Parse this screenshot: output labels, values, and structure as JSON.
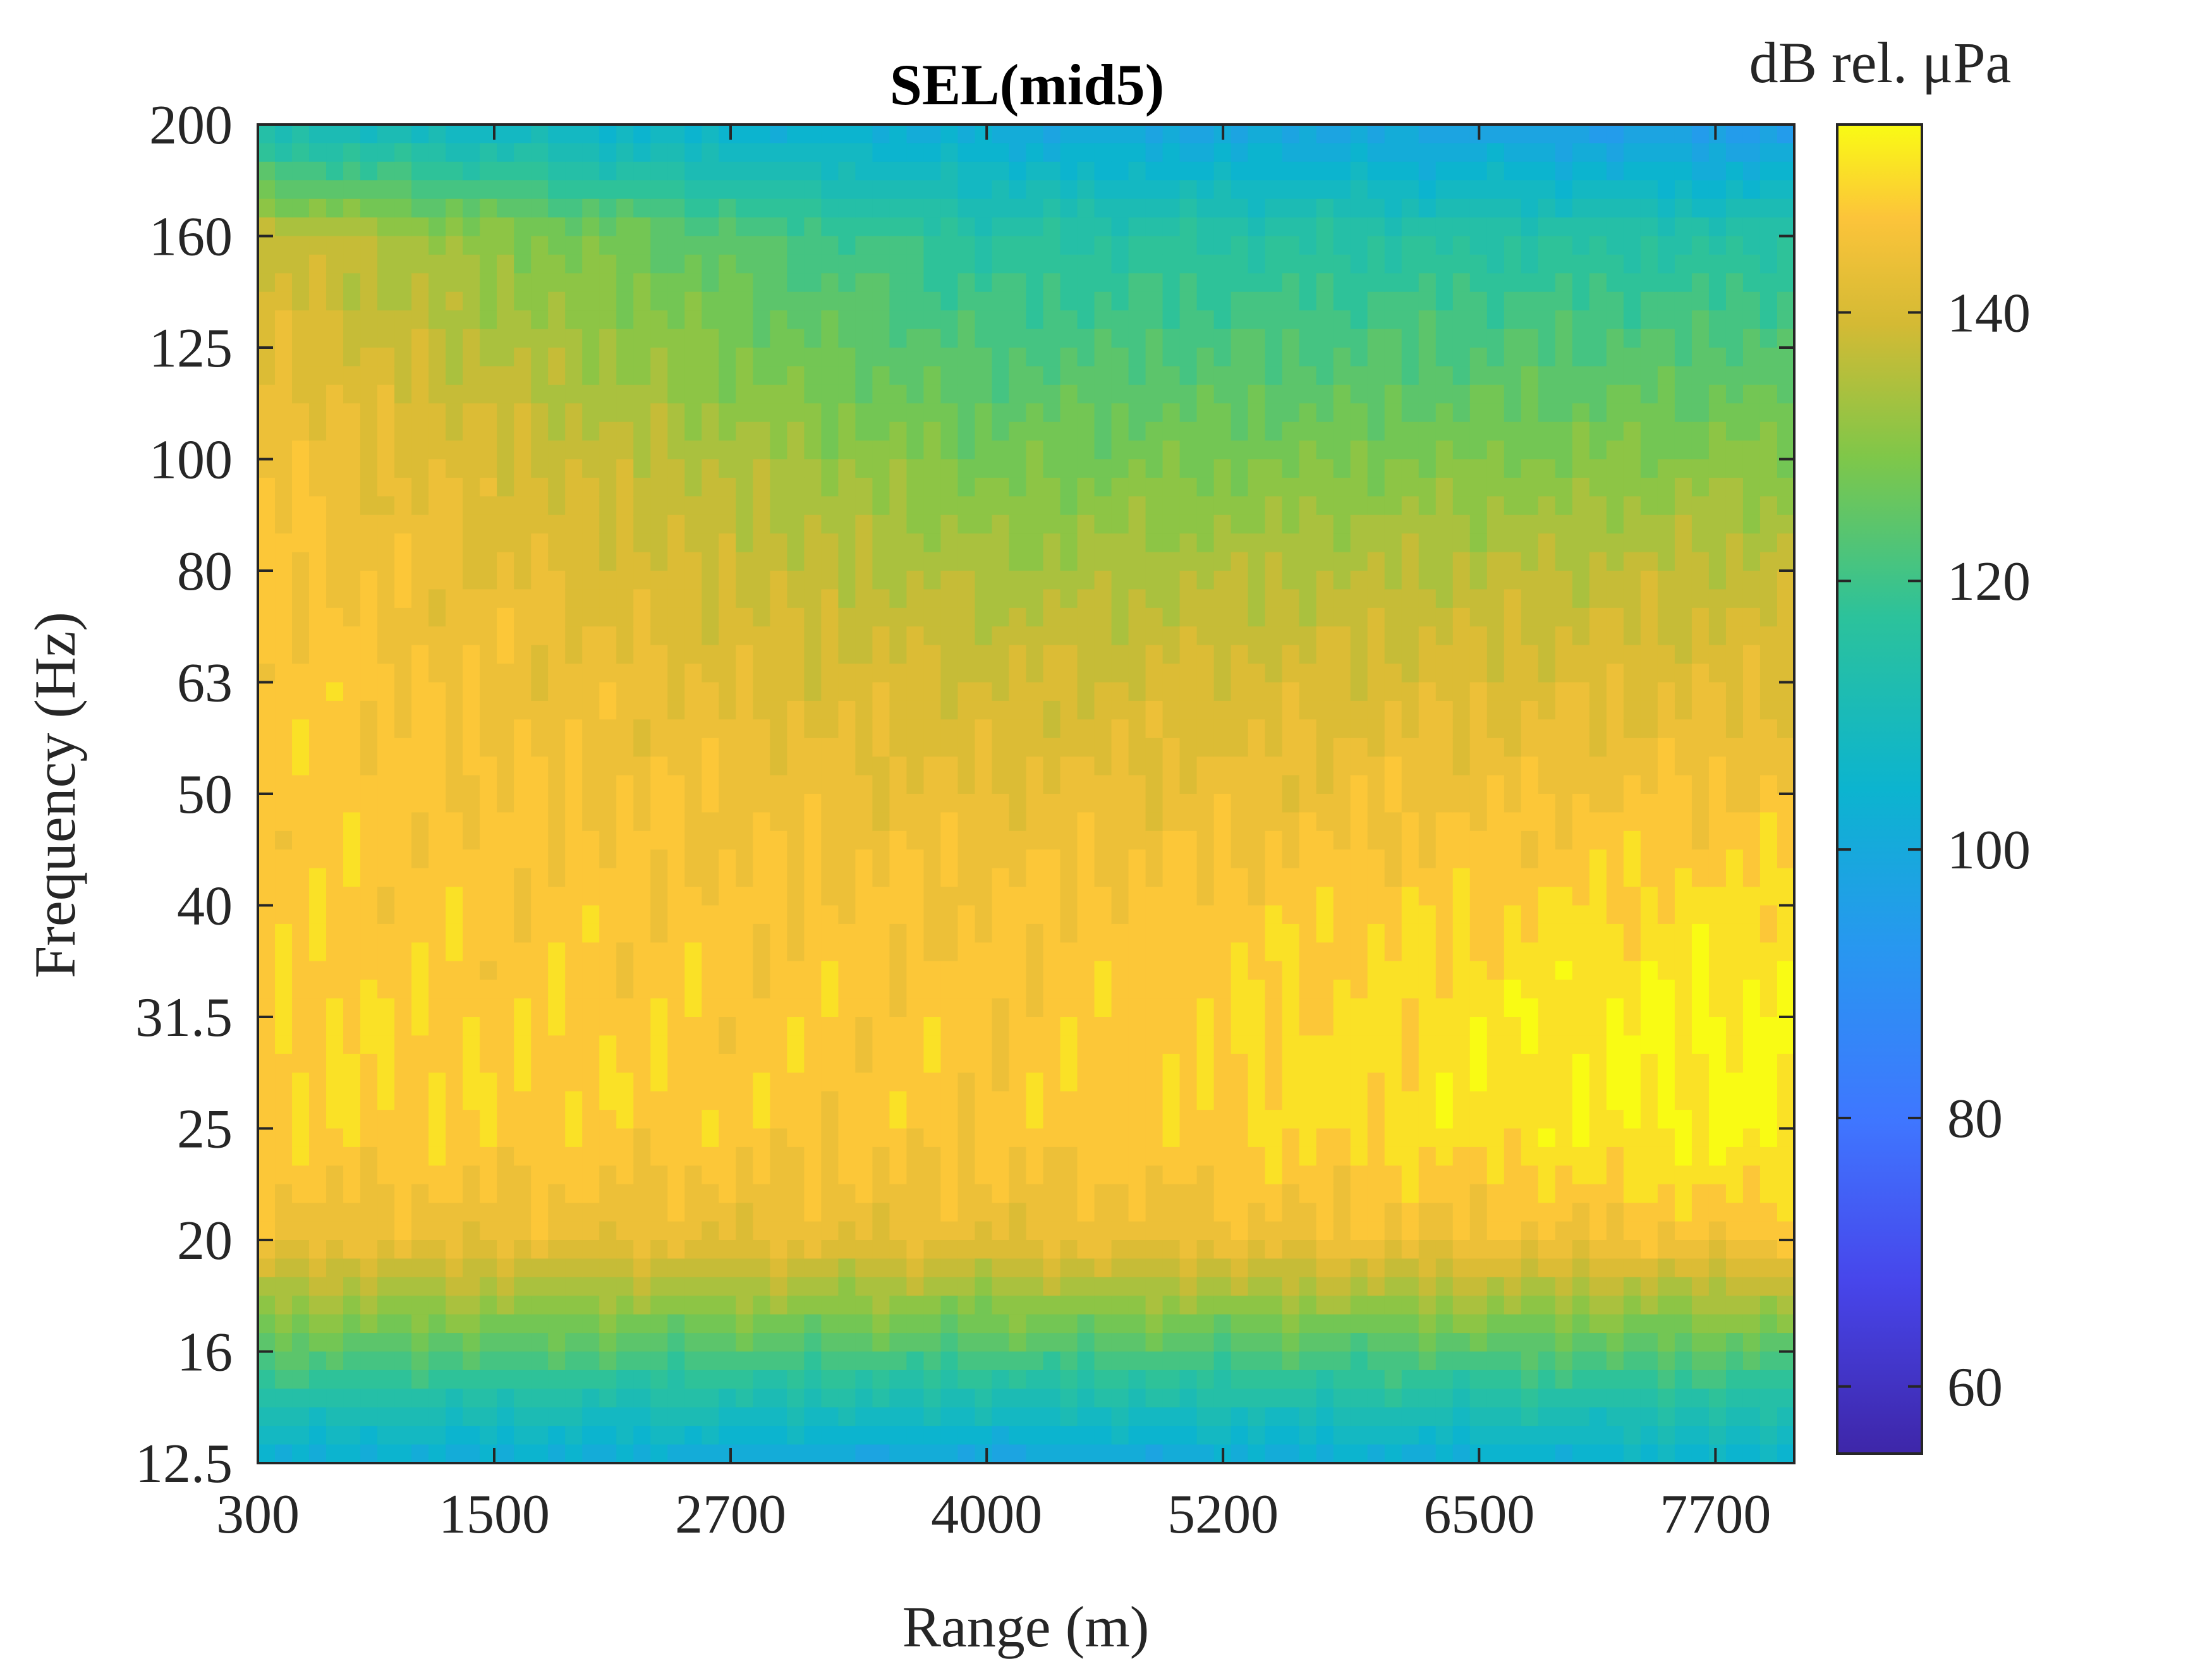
{
  "chart_data": {
    "type": "heatmap",
    "title": "SEL(mid5)",
    "xlabel": "Range (m)",
    "ylabel": "Frequency (Hz)",
    "xlim": [
      300,
      8100
    ],
    "x_ticks": [
      "300",
      "1500",
      "2700",
      "4000",
      "5200",
      "6500",
      "7700"
    ],
    "x_tick_values": [
      300,
      1500,
      2700,
      4000,
      5200,
      6500,
      7700
    ],
    "y_ticks": [
      "12.5",
      "16",
      "20",
      "25",
      "31.5",
      "40",
      "50",
      "63",
      "80",
      "100",
      "125",
      "160",
      "200"
    ],
    "y_scale": "third-octave bands (evenly spaced)",
    "colorbar": {
      "label": "dB rel. μPa",
      "range": [
        55,
        154
      ],
      "ticks": [
        "60",
        "80",
        "100",
        "120",
        "140"
      ],
      "tick_values": [
        60,
        80,
        100,
        120,
        140
      ],
      "colormap": "parula"
    },
    "bands_profile": {
      "freqs": [
        "12.5",
        "16",
        "20",
        "25",
        "31.5",
        "40",
        "50",
        "63",
        "80",
        "100",
        "125",
        "160",
        "200"
      ],
      "near_range_300m": [
        102,
        124,
        144,
        149,
        149,
        148,
        148,
        148,
        147,
        146,
        142,
        138,
        110
      ],
      "mid_range_4000m": [
        98,
        122,
        143,
        147,
        147,
        146,
        143,
        139,
        134,
        128,
        122,
        116,
        100
      ],
      "far_range_7700m": [
        104,
        124,
        146,
        153,
        153,
        150,
        146,
        142,
        137,
        130,
        123,
        115,
        95
      ]
    },
    "grid": false
  }
}
